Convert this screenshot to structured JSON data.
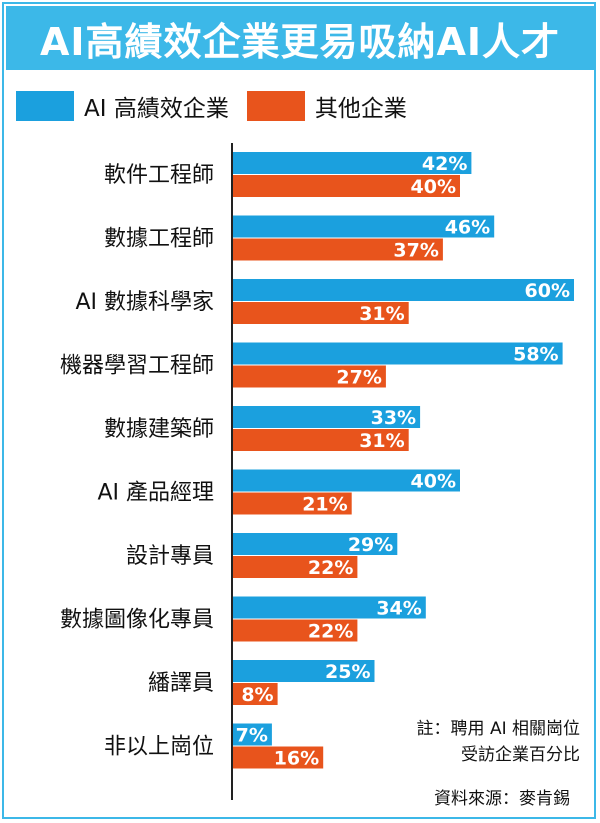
{
  "title": "AI高績效企業更易吸納AI人才",
  "colors": {
    "banner": "#3cb8e8",
    "series_ai": "#1ba0de",
    "series_other": "#e8541c",
    "axis": "#222222"
  },
  "chart_data": {
    "type": "bar",
    "orientation": "horizontal",
    "categories": [
      "軟件工程師",
      "數據工程師",
      "AI 數據科學家",
      "機器學習工程師",
      "數據建築師",
      "AI 產品經理",
      "設計專員",
      "數據圖像化專員",
      "繙譯員",
      "非以上崗位"
    ],
    "series": [
      {
        "name": "AI 高績效企業",
        "color": "#1ba0de",
        "values": [
          42,
          46,
          60,
          58,
          33,
          40,
          29,
          34,
          25,
          7
        ]
      },
      {
        "name": "其他企業",
        "color": "#e8541c",
        "values": [
          40,
          37,
          31,
          27,
          31,
          21,
          22,
          22,
          8,
          16
        ]
      }
    ],
    "value_suffix": "%",
    "xlim": [
      0,
      60
    ],
    "grid": false,
    "legend_position": "top-left"
  },
  "notes": [
    "註：聘用 AI 相關崗位",
    "受訪企業百分比"
  ],
  "source": "資料來源：麥肯錫"
}
